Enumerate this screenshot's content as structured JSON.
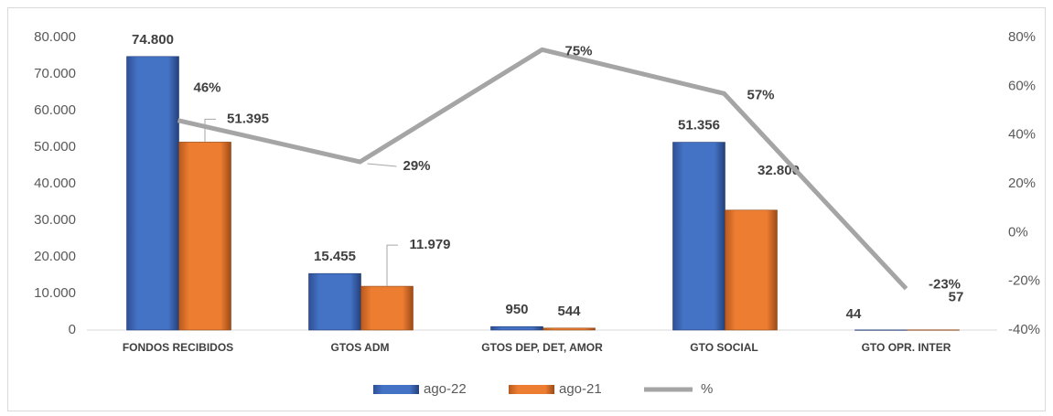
{
  "chart_data": {
    "type": "bar",
    "categories": [
      "FONDOS RECIBIDOS",
      "GTOS ADM",
      "GTOS DEP,  DET, AMOR",
      "GTO SOCIAL",
      "GTO OPR. INTER"
    ],
    "series": [
      {
        "name": "ago-22",
        "color": "#4472c4",
        "values": [
          74800,
          15455,
          950,
          51356,
          44
        ],
        "value_labels": [
          "74.800",
          "15.455",
          "950",
          "51.356",
          "44"
        ]
      },
      {
        "name": "ago-21",
        "color": "#ed7d31",
        "values": [
          51395,
          11979,
          544,
          32800,
          57
        ],
        "value_labels": [
          "51.395",
          "11.979",
          "544",
          "32.800",
          "57"
        ]
      },
      {
        "name": "%",
        "type": "line",
        "axis": "y2",
        "color": "#a5a5a5",
        "values": [
          46,
          29,
          75,
          57,
          -23
        ],
        "value_labels": [
          "46%",
          "29%",
          "75%",
          "57%",
          "-23%"
        ]
      }
    ],
    "ylim": [
      0,
      80000
    ],
    "yticks": [
      0,
      {
        "value": 10000,
        "label": "10.000"
      },
      {
        "value": 20000,
        "label": "20.000"
      },
      {
        "value": 30000,
        "label": "30.000"
      },
      {
        "value": 40000,
        "label": "40.000"
      },
      {
        "value": 50000,
        "label": "50.000"
      },
      {
        "value": 60000,
        "label": "60.000"
      },
      {
        "value": 70000,
        "label": "70.000"
      },
      {
        "value": 80000,
        "label": "80.000"
      }
    ],
    "y2lim": [
      -40,
      80
    ],
    "y2ticks": [
      {
        "value": -40,
        "label": "-40%"
      },
      {
        "value": -20,
        "label": "-20%"
      },
      {
        "value": 0,
        "label": "0%"
      },
      {
        "value": 20,
        "label": "20%"
      },
      {
        "value": 40,
        "label": "40%"
      },
      {
        "value": 60,
        "label": "60%"
      },
      {
        "value": 80,
        "label": "80%"
      }
    ],
    "legend": "bottom"
  }
}
